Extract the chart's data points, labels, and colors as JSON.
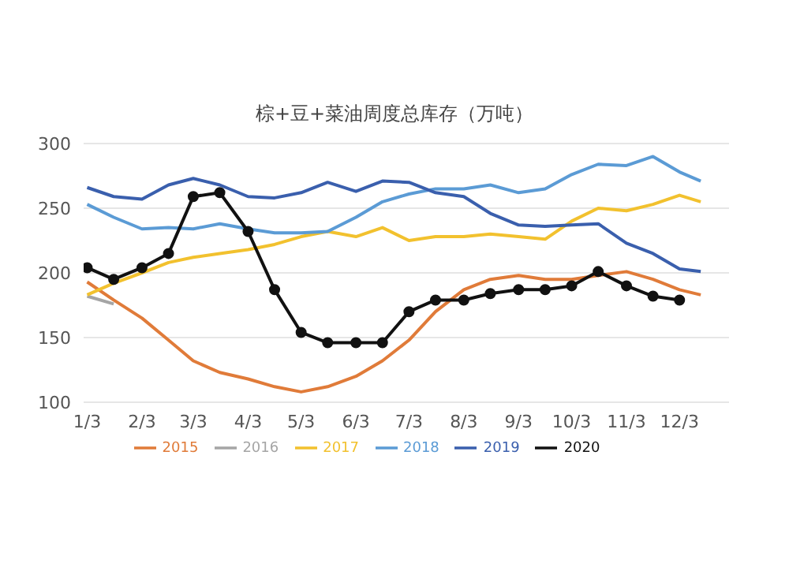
{
  "chart_data": {
    "type": "line",
    "title": "棕+豆+菜油周度总库存（万吨）",
    "x": [
      "--01-03",
      "--01-18",
      "--02-03",
      "--02-18",
      "--03-03",
      "--03-18",
      "--04-03",
      "--04-18",
      "--05-03",
      "--05-18",
      "--06-03",
      "--06-18",
      "--07-03",
      "--07-18",
      "--08-03",
      "--08-18",
      "--09-03",
      "--09-18",
      "--10-03",
      "--10-18",
      "--11-03",
      "--11-18",
      "--12-03",
      "--12-15"
    ],
    "xlim": [
      "--01-01",
      "--12-31"
    ],
    "xticks": [
      {
        "value": "--01-03",
        "label": "1/3"
      },
      {
        "value": "--02-03",
        "label": "2/3"
      },
      {
        "value": "--03-03",
        "label": "3/3"
      },
      {
        "value": "--04-03",
        "label": "4/3"
      },
      {
        "value": "--05-03",
        "label": "5/3"
      },
      {
        "value": "--06-03",
        "label": "6/3"
      },
      {
        "value": "--07-03",
        "label": "7/3"
      },
      {
        "value": "--08-03",
        "label": "8/3"
      },
      {
        "value": "--09-03",
        "label": "9/3"
      },
      {
        "value": "--10-03",
        "label": "10/3"
      },
      {
        "value": "--11-03",
        "label": "11/3"
      },
      {
        "value": "--12-03",
        "label": "12/3"
      }
    ],
    "ylim": [
      100,
      300
    ],
    "yticks": [
      100,
      150,
      200,
      250,
      300
    ],
    "grid": "y",
    "legend": "bottom",
    "marker": "none",
    "line_style": "solid",
    "series": [
      {
        "name": "2015",
        "color": "#e07b39",
        "values": [
          193,
          179,
          165,
          148,
          132,
          123,
          118,
          112,
          108,
          112,
          120,
          132,
          148,
          170,
          187,
          195,
          198,
          195,
          195,
          198,
          201,
          195,
          187,
          183
        ]
      },
      {
        "name": "2016",
        "color": "#a5a5a5",
        "values": [
          182,
          176,
          null,
          null,
          null,
          null,
          null,
          null,
          null,
          null,
          null,
          null,
          null,
          null,
          null,
          null,
          null,
          null,
          null,
          null,
          null,
          null,
          null,
          null
        ]
      },
      {
        "name": "2017",
        "color": "#f2c12e",
        "values": [
          183,
          192,
          200,
          208,
          212,
          215,
          218,
          222,
          228,
          232,
          228,
          235,
          225,
          228,
          228,
          230,
          228,
          226,
          240,
          250,
          248,
          253,
          260,
          255
        ]
      },
      {
        "name": "2018",
        "color": "#5b9bd5",
        "values": [
          253,
          243,
          234,
          235,
          234,
          238,
          234,
          231,
          231,
          232,
          243,
          255,
          261,
          265,
          265,
          268,
          262,
          265,
          276,
          284,
          283,
          290,
          278,
          271
        ]
      },
      {
        "name": "2019",
        "color": "#3a5fad",
        "values": [
          266,
          259,
          257,
          268,
          273,
          268,
          259,
          258,
          262,
          270,
          263,
          271,
          270,
          262,
          259,
          246,
          237,
          236,
          237,
          238,
          223,
          215,
          203,
          201
        ]
      },
      {
        "name": "2020",
        "color": "#111111",
        "marker": "circle",
        "values": [
          204,
          195,
          204,
          215,
          259,
          262,
          232,
          187,
          154,
          146,
          146,
          146,
          170,
          179,
          179,
          184,
          187,
          187,
          190,
          201,
          190,
          182,
          179,
          null
        ]
      }
    ]
  }
}
